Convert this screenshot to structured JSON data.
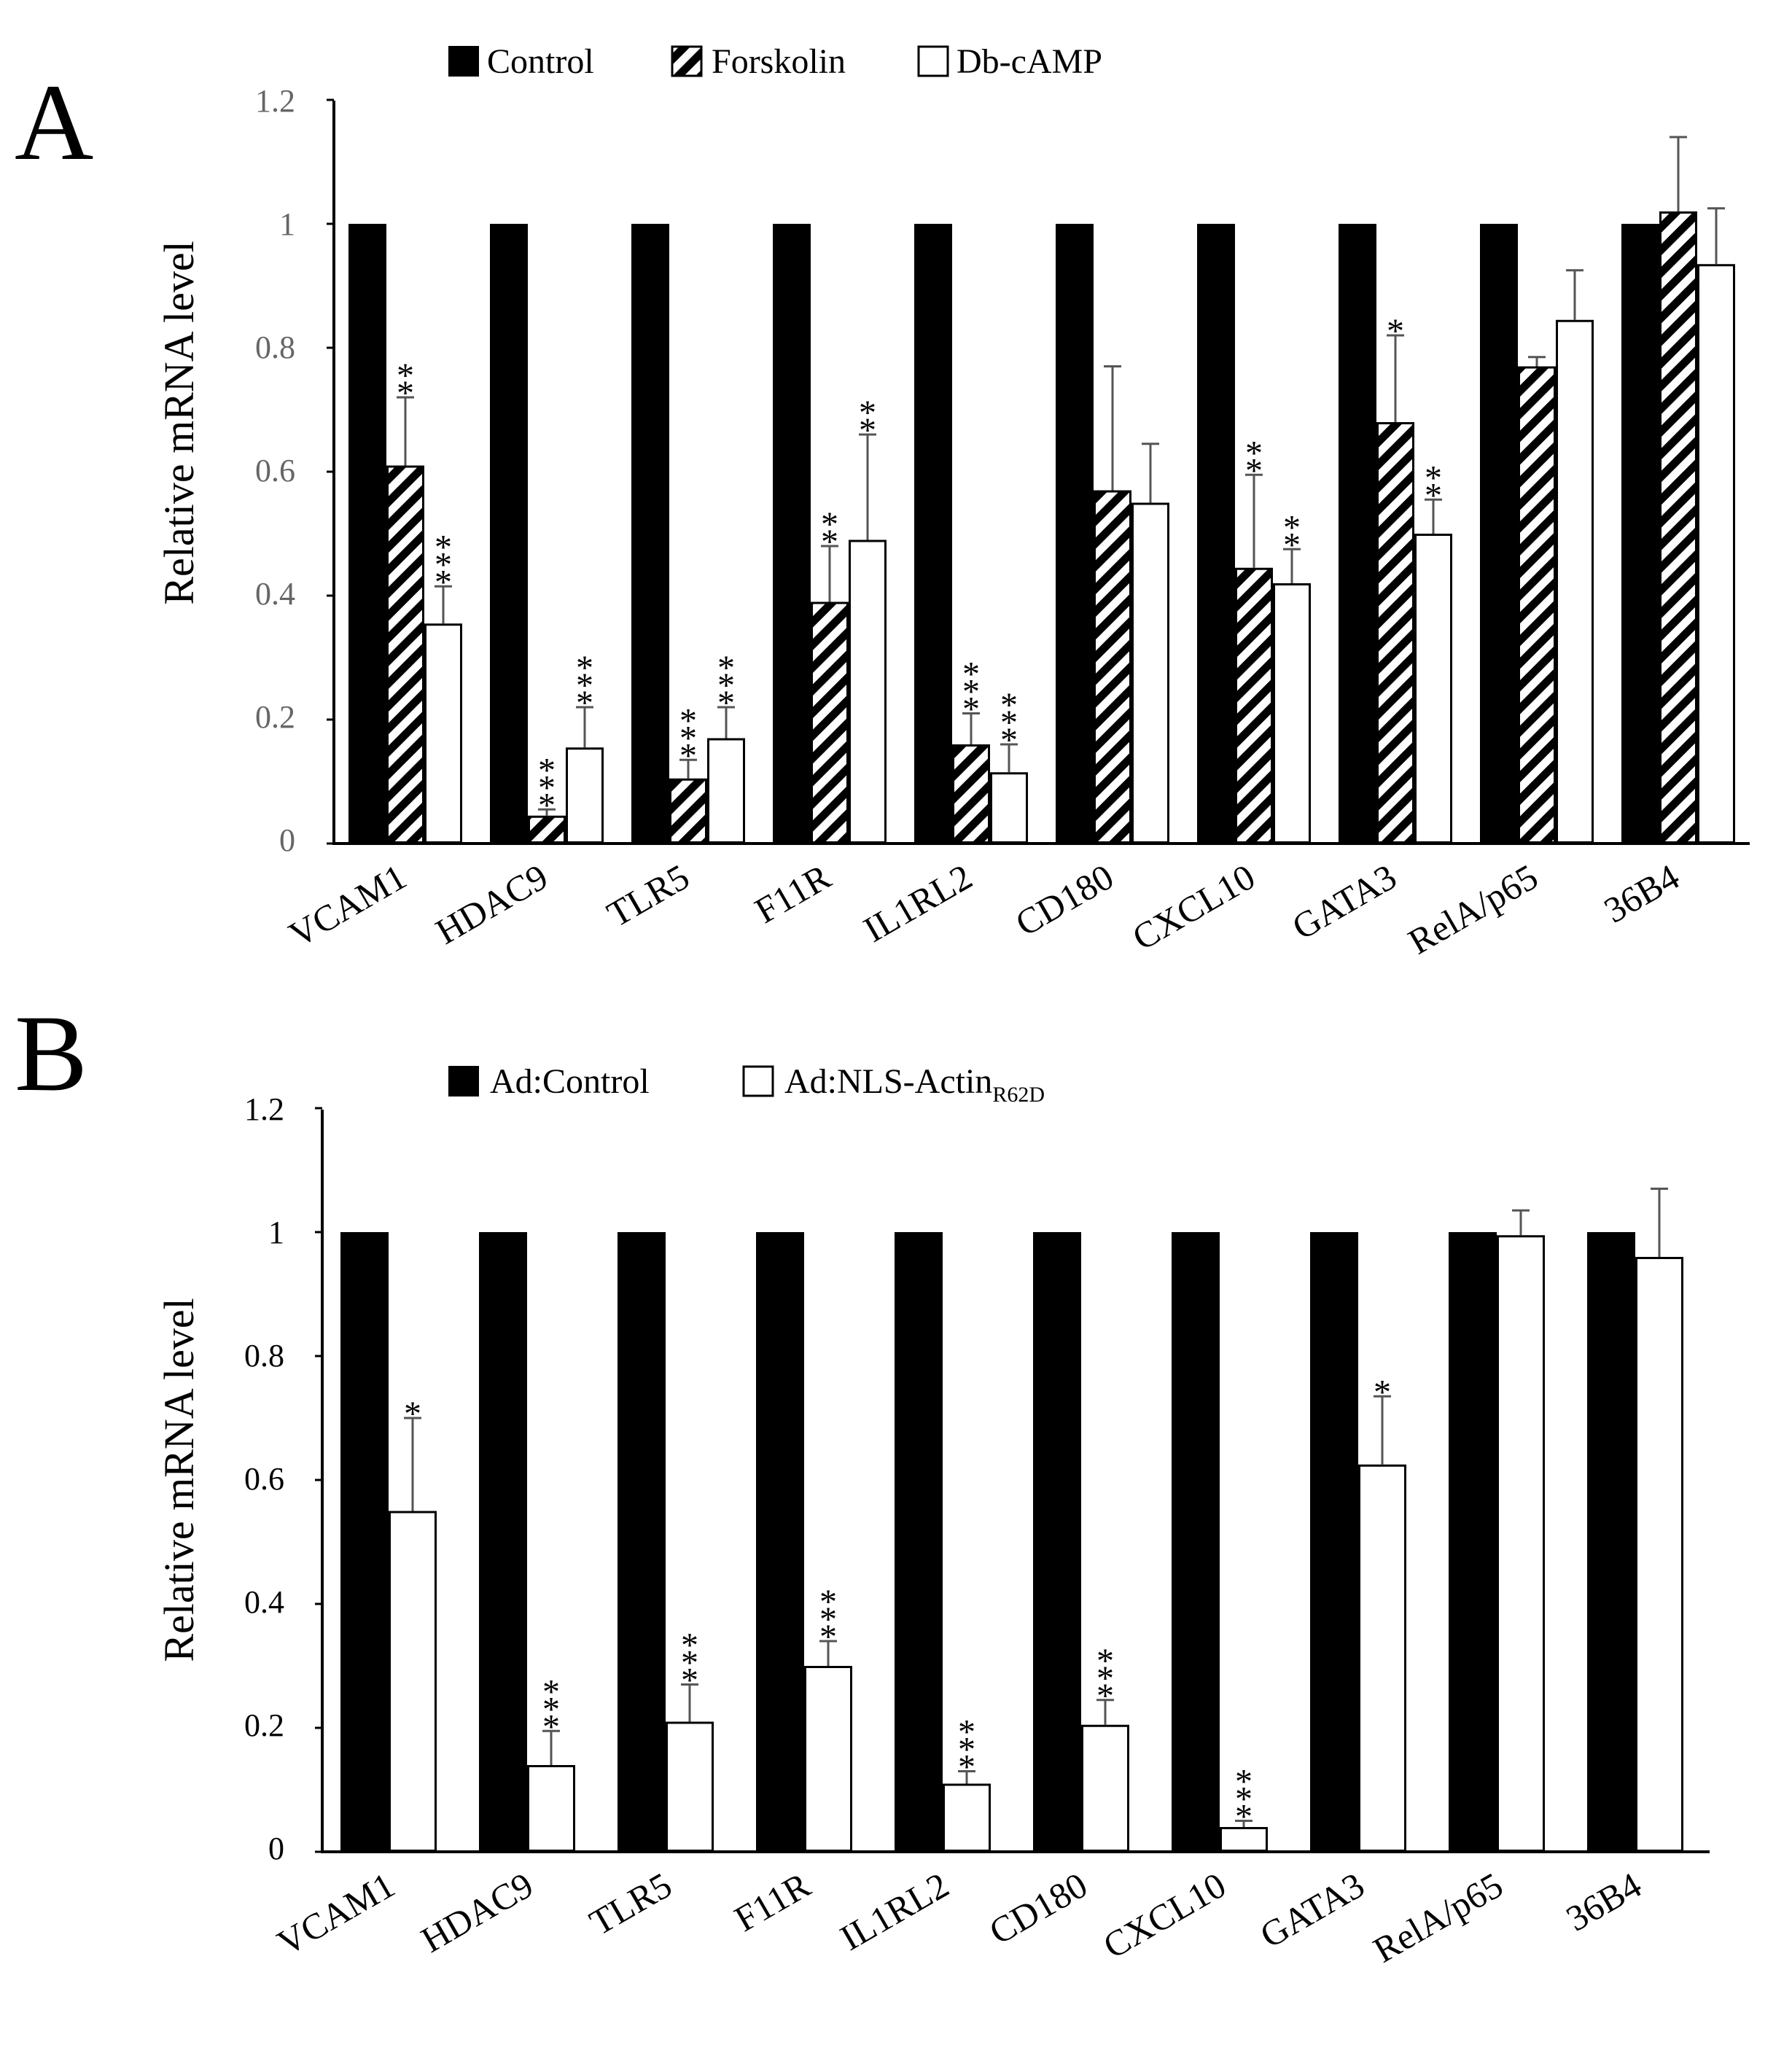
{
  "chart_data": [
    {
      "type": "bar",
      "panel_label": "A",
      "title": "",
      "xlabel": "",
      "ylabel": "Relative mRNA level",
      "ylim": [
        0,
        1.2
      ],
      "yticks": [
        "0",
        "0.2",
        "0.4",
        "0.6",
        "0.8",
        "1",
        "1.2"
      ],
      "categories": [
        "VCAM1",
        "HDAC9",
        "TLR5",
        "F11R",
        "IL1RL2",
        "CD180",
        "CXCL10",
        "GATA3",
        "RelA/p65",
        "36B4"
      ],
      "series": [
        {
          "name": "Control",
          "fill": "#000000",
          "pattern": "solid",
          "values": [
            1,
            1,
            1,
            1,
            1,
            1,
            1,
            1,
            1,
            1
          ],
          "errors": [
            0,
            0,
            0,
            0,
            0,
            0,
            0,
            0,
            0,
            0
          ],
          "significance": [
            "",
            "",
            "",
            "",
            "",
            "",
            "",
            "",
            "",
            ""
          ]
        },
        {
          "name": "Forskolin",
          "fill": "#000000",
          "pattern": "hatch",
          "values": [
            0.61,
            0.045,
            0.105,
            0.39,
            0.16,
            0.57,
            0.445,
            0.68,
            0.77,
            1.02
          ],
          "errors": [
            0.11,
            0.01,
            0.03,
            0.09,
            0.05,
            0.2,
            0.15,
            0.14,
            0.015,
            0.12
          ],
          "significance": [
            "**",
            "***",
            "***",
            "**",
            "***",
            "",
            "**",
            "*",
            "",
            ""
          ]
        },
        {
          "name": "Db-cAMP",
          "fill": "#ffffff",
          "pattern": "open",
          "values": [
            0.355,
            0.155,
            0.17,
            0.49,
            0.115,
            0.55,
            0.42,
            0.5,
            0.845,
            0.935
          ],
          "errors": [
            0.06,
            0.065,
            0.05,
            0.17,
            0.045,
            0.095,
            0.055,
            0.055,
            0.08,
            0.09
          ],
          "significance": [
            "***",
            "***",
            "***",
            "**",
            "***",
            "",
            "**",
            "**",
            "",
            ""
          ]
        }
      ],
      "legend": {
        "placement": "top",
        "entries": [
          "Control",
          "Forskolin",
          "Db-cAMP"
        ]
      }
    },
    {
      "type": "bar",
      "panel_label": "B",
      "title": "",
      "xlabel": "",
      "ylabel": "Relative mRNA level",
      "ylim": [
        0,
        1.2
      ],
      "yticks": [
        "0",
        "0.2",
        "0.4",
        "0.6",
        "0.8",
        "1",
        "1.2"
      ],
      "categories": [
        "VCAM1",
        "HDAC9",
        "TLR5",
        "F11R",
        "IL1RL2",
        "CD180",
        "CXCL10",
        "GATA3",
        "RelA/p65",
        "36B4"
      ],
      "series": [
        {
          "name": "Ad:Control",
          "fill": "#000000",
          "pattern": "solid",
          "values": [
            1,
            1,
            1,
            1,
            1,
            1,
            1,
            1,
            1,
            1
          ],
          "errors": [
            0,
            0,
            0,
            0,
            0,
            0,
            0,
            0,
            0,
            0
          ],
          "significance": [
            "",
            "",
            "",
            "",
            "",
            "",
            "",
            "",
            "",
            ""
          ]
        },
        {
          "name": "Ad:NLS-Actin",
          "name_subscript": "R62D",
          "fill": "#ffffff",
          "pattern": "open",
          "values": [
            0.55,
            0.14,
            0.21,
            0.3,
            0.11,
            0.205,
            0.04,
            0.625,
            0.995,
            0.96
          ],
          "errors": [
            0.15,
            0.055,
            0.06,
            0.04,
            0.02,
            0.04,
            0.01,
            0.11,
            0.04,
            0.11
          ],
          "significance": [
            "*",
            "***",
            "***",
            "***",
            "***",
            "***",
            "***",
            "*",
            "",
            ""
          ]
        }
      ],
      "legend": {
        "placement": "top",
        "entries": [
          "Ad:Control",
          "Ad:NLS-ActinR62D"
        ]
      }
    }
  ]
}
